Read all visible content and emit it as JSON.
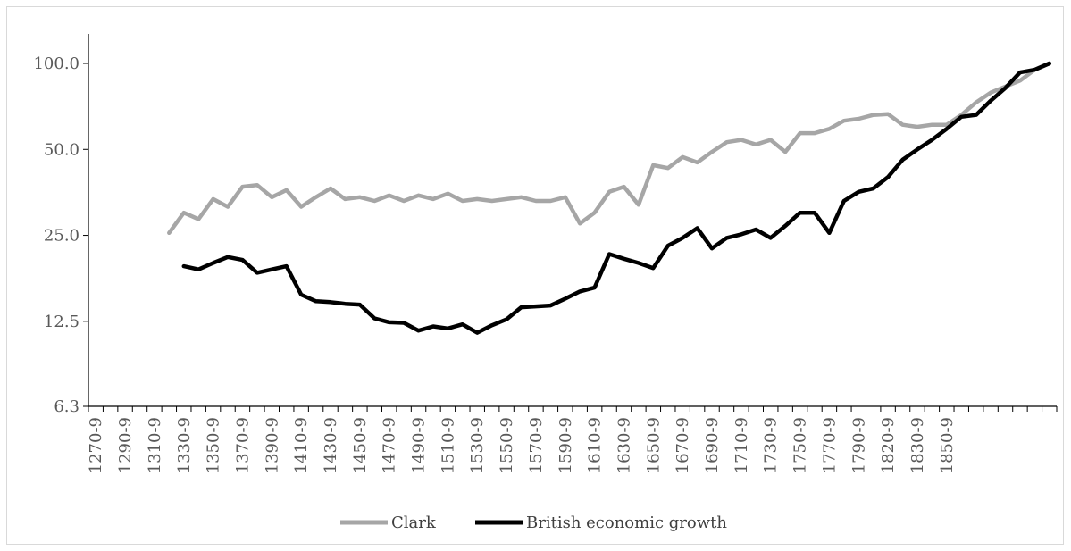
{
  "chart_data": {
    "type": "line",
    "title": "",
    "xlabel": "",
    "ylabel": "",
    "y_scale": "log2",
    "ylim": [
      6.3,
      100.0
    ],
    "y_ticks": [
      "100.0",
      "50.0",
      "25.0",
      "12.5",
      "6.3"
    ],
    "y_tick_values": [
      100.0,
      50.0,
      25.0,
      12.5,
      6.3
    ],
    "x_labels_shown": [
      "1270-9",
      "1290-9",
      "1310-9",
      "1330-9",
      "1350-9",
      "1370-9",
      "1390-9",
      "1410-9",
      "1430-9",
      "1450-9",
      "1470-9",
      "1490-9",
      "1510-9",
      "1530-9",
      "1550-9",
      "1570-9",
      "1590-9",
      "1610-9",
      "1630-9",
      "1650-9",
      "1670-9",
      "1690-9",
      "1710-9",
      "1730-9",
      "1750-9",
      "1770-9",
      "1790-9",
      "1820-9",
      "1830-9",
      "1850-9"
    ],
    "x_points": 66,
    "grid": false,
    "legend_position": "bottom",
    "series": [
      {
        "name": "Clark",
        "color": "#a6a6a6",
        "values": [
          25.5,
          30.0,
          28.5,
          33.5,
          31.5,
          37.0,
          37.5,
          34.0,
          36.0,
          31.5,
          34.0,
          36.5,
          33.5,
          34.0,
          33.0,
          34.5,
          33.0,
          34.5,
          33.5,
          35.0,
          33.0,
          33.5,
          33.0,
          33.5,
          34.0,
          33.0,
          33.0,
          34.0,
          27.5,
          30.0,
          35.5,
          37.0,
          32.0,
          44.0,
          43.0,
          47.0,
          45.0,
          49.0,
          53.0,
          54.0,
          52.0,
          54.0,
          49.0,
          57.0,
          57.0,
          59.0,
          63.0,
          64.0,
          66.0,
          66.5,
          61.0,
          60.0,
          61.0,
          61.0,
          66.0,
          73.0,
          79.0,
          83.0,
          87.0,
          95.0,
          100.0
        ]
      },
      {
        "name": "British economic growth",
        "color": "#000000",
        "values": [
          19.5,
          19.0,
          20.0,
          21.0,
          20.5,
          18.5,
          19.0,
          19.5,
          15.5,
          14.7,
          14.6,
          14.4,
          14.3,
          12.8,
          12.4,
          12.35,
          11.6,
          12.0,
          11.8,
          12.2,
          11.4,
          12.1,
          12.7,
          14.0,
          14.1,
          14.2,
          15.0,
          15.9,
          16.4,
          21.5,
          20.7,
          20.0,
          19.2,
          23.0,
          24.5,
          26.5,
          22.5,
          24.5,
          25.2,
          26.2,
          24.5,
          27.0,
          30.0,
          30.0,
          25.5,
          33.0,
          35.5,
          36.5,
          40.0,
          46.0,
          50.0,
          54.0,
          59.0,
          65.0,
          66.0,
          74.0,
          82.0,
          93.0,
          95.0,
          100.0
        ]
      }
    ]
  }
}
